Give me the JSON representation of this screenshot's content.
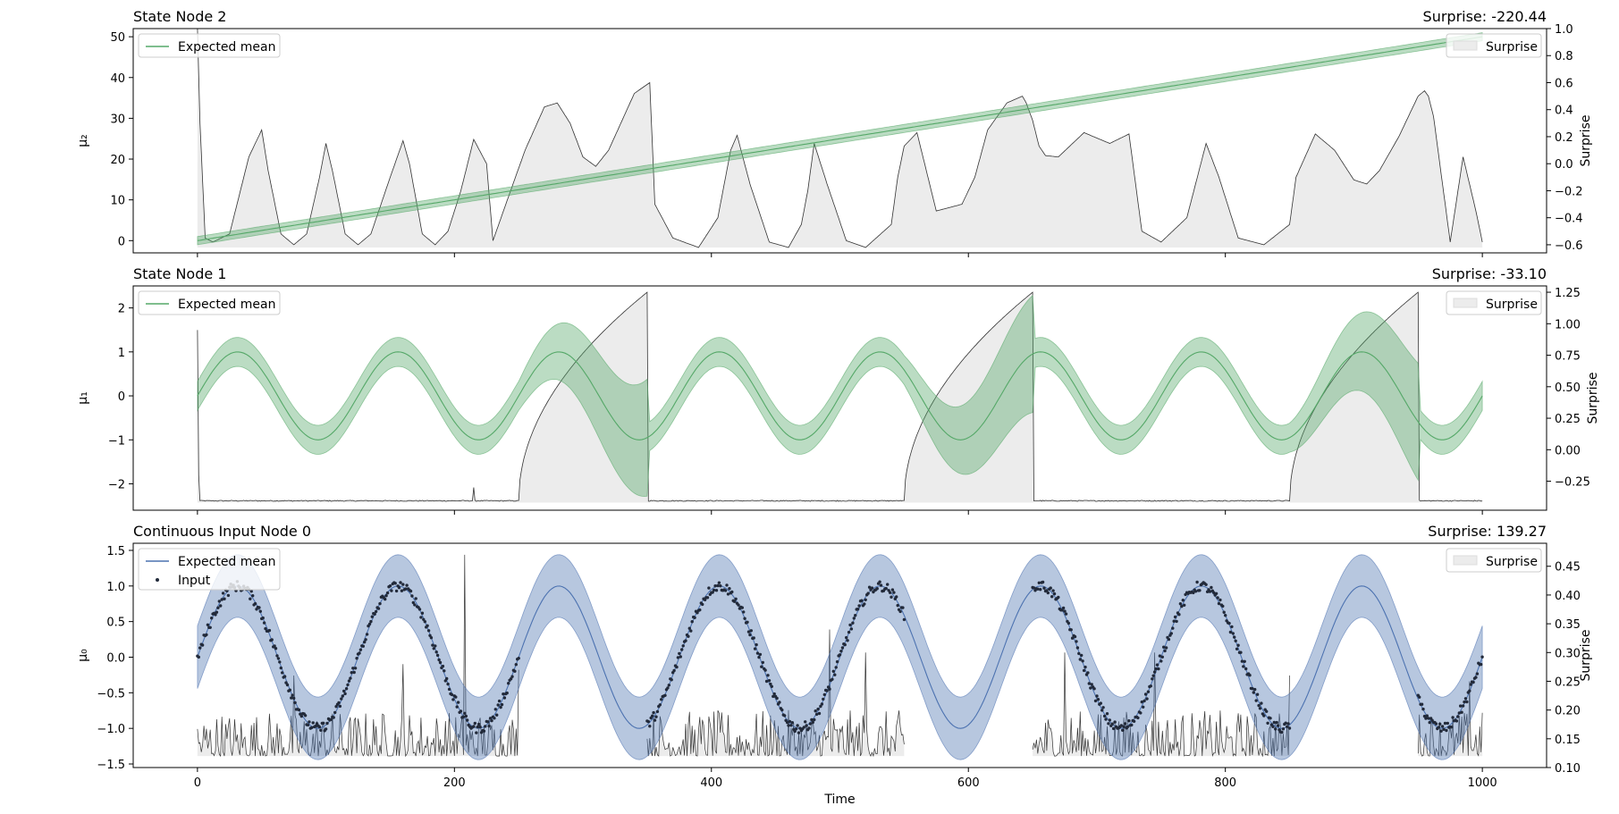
{
  "chart_data": [
    {
      "type": "line",
      "title": "State Node 2",
      "surprise_label": "Surprise: -220.44",
      "ylabel": "μ₂",
      "y2label": "Surprise",
      "xlim": [
        -50,
        1050
      ],
      "ylim": [
        -3,
        52
      ],
      "y2lim": [
        -0.66,
        1.0
      ],
      "yticks": [
        0,
        10,
        20,
        30,
        40,
        50
      ],
      "y2ticks": [
        -0.6,
        -0.4,
        -0.2,
        0.0,
        0.2,
        0.4,
        0.6,
        0.8,
        1.0
      ],
      "y2ticklabels": [
        "−0.6",
        "−0.4",
        "−0.2",
        "0.0",
        "0.2",
        "0.4",
        "0.6",
        "0.8",
        "1.0"
      ],
      "grid": false,
      "legend": {
        "position": "top-left",
        "entries": [
          "Expected mean"
        ]
      },
      "legend2": {
        "position": "top-right",
        "entries": [
          "Surprise"
        ]
      },
      "series": [
        {
          "name": "Expected mean",
          "color": "#55a868",
          "x": [
            0,
            1000
          ],
          "y": [
            0,
            50
          ],
          "band_width": [
            1.0,
            1.0
          ]
        },
        {
          "name": "Surprise",
          "color": "#333333",
          "fill": "#ececec",
          "axis": "right",
          "fill_base": -0.62,
          "x": [
            0,
            2,
            6,
            12,
            25,
            40,
            50,
            55,
            65,
            75,
            85,
            95,
            100,
            105,
            115,
            125,
            135,
            150,
            160,
            165,
            175,
            185,
            195,
            205,
            215,
            225,
            230,
            240,
            255,
            270,
            280,
            290,
            300,
            310,
            320,
            340,
            352,
            356,
            370,
            390,
            405,
            415,
            420,
            430,
            445,
            460,
            470,
            475,
            480,
            490,
            505,
            520,
            540,
            545,
            550,
            560,
            575,
            595,
            605,
            615,
            630,
            642,
            645,
            650,
            655,
            660,
            670,
            690,
            710,
            725,
            735,
            750,
            770,
            785,
            795,
            810,
            830,
            850,
            855,
            870,
            885,
            900,
            910,
            920,
            935,
            950,
            955,
            958,
            962,
            975,
            985,
            995,
            1000
          ],
          "y": [
            1.0,
            0.3,
            -0.55,
            -0.58,
            -0.52,
            0.05,
            0.25,
            -0.05,
            -0.52,
            -0.6,
            -0.52,
            -0.1,
            0.15,
            -0.05,
            -0.52,
            -0.6,
            -0.52,
            -0.1,
            0.17,
            0.0,
            -0.52,
            -0.6,
            -0.5,
            -0.2,
            0.18,
            0.0,
            -0.57,
            -0.3,
            0.1,
            0.42,
            0.45,
            0.3,
            0.05,
            -0.02,
            0.1,
            0.52,
            0.6,
            -0.3,
            -0.55,
            -0.62,
            -0.4,
            0.1,
            0.21,
            -0.15,
            -0.58,
            -0.62,
            -0.45,
            -0.2,
            0.15,
            -0.15,
            -0.57,
            -0.62,
            -0.45,
            -0.1,
            0.13,
            0.23,
            -0.35,
            -0.3,
            -0.1,
            0.25,
            0.45,
            0.5,
            0.45,
            0.32,
            0.13,
            0.06,
            0.05,
            0.23,
            0.15,
            0.22,
            -0.5,
            -0.58,
            -0.4,
            0.15,
            -0.1,
            -0.55,
            -0.6,
            -0.45,
            -0.1,
            0.22,
            0.1,
            -0.12,
            -0.15,
            -0.05,
            0.2,
            0.5,
            0.54,
            0.5,
            0.35,
            -0.58,
            0.05,
            -0.35,
            -0.58
          ]
        }
      ]
    },
    {
      "type": "line",
      "title": "State Node 1",
      "surprise_label": "Surprise: -33.10",
      "ylabel": "μ₁",
      "y2label": "Surprise",
      "xlim": [
        -50,
        1050
      ],
      "ylim": [
        -2.6,
        2.5
      ],
      "y2lim": [
        -0.48,
        1.3
      ],
      "yticks": [
        -2,
        -1,
        0,
        1,
        2
      ],
      "yticklabels": [
        "−2",
        "−1",
        "0",
        "1",
        "2"
      ],
      "y2ticks": [
        -0.25,
        0.0,
        0.25,
        0.5,
        0.75,
        1.0,
        1.25
      ],
      "y2ticklabels": [
        "−0.25",
        "0.00",
        "0.25",
        "0.50",
        "0.75",
        "1.00",
        "1.25"
      ],
      "grid": false,
      "legend": {
        "position": "top-left",
        "entries": [
          "Expected mean"
        ]
      },
      "legend2": {
        "position": "top-right",
        "entries": [
          "Surprise"
        ]
      },
      "series": [
        {
          "name": "Expected mean",
          "color": "#55a868",
          "function": "sin(2*pi*x/125)",
          "x_range": [
            0,
            1000
          ],
          "band_width_normal": 0.33,
          "missing_input_segments": [
            [
              250,
              350
            ],
            [
              550,
              650
            ],
            [
              850,
              950
            ]
          ]
        },
        {
          "name": "Surprise",
          "color": "#333333",
          "fill": "#ececec",
          "axis": "right",
          "fill_base": -0.42,
          "baseline": -0.405,
          "spikes": [
            [
              0,
              0.95
            ],
            [
              215,
              -0.3
            ]
          ],
          "ramps": [
            [
              250,
              350,
              1.25
            ],
            [
              550,
              650,
              1.25
            ],
            [
              850,
              950,
              1.25
            ]
          ]
        }
      ]
    },
    {
      "type": "scatter",
      "title": "Continuous Input Node 0",
      "surprise_label": "Surprise: 139.27",
      "ylabel": "μ₀",
      "y2label": "Surprise",
      "xlabel": "Time",
      "xlim": [
        -50,
        1050
      ],
      "ylim": [
        -1.55,
        1.6
      ],
      "y2lim": [
        0.1,
        0.49
      ],
      "xticks": [
        0,
        200,
        400,
        600,
        800,
        1000
      ],
      "yticks": [
        -1.5,
        -1.0,
        -0.5,
        0.0,
        0.5,
        1.0,
        1.5
      ],
      "yticklabels": [
        "−1.5",
        "−1.0",
        "−0.5",
        "0.0",
        "0.5",
        "1.0",
        "1.5"
      ],
      "y2ticks": [
        0.1,
        0.15,
        0.2,
        0.25,
        0.3,
        0.35,
        0.4,
        0.45
      ],
      "y2ticklabels": [
        "0.10",
        "0.15",
        "0.20",
        "0.25",
        "0.30",
        "0.35",
        "0.40",
        "0.45"
      ],
      "grid": false,
      "legend": {
        "position": "top-left",
        "entries": [
          "Expected mean",
          "Input"
        ]
      },
      "legend2": {
        "position": "top-right",
        "entries": [
          "Surprise"
        ]
      },
      "series": [
        {
          "name": "Expected mean",
          "color": "#4c72b0",
          "function": "sin(2*pi*x/125)",
          "x_range": [
            0,
            1000
          ],
          "band_width": 0.44
        },
        {
          "name": "Input",
          "color": "#222a3a",
          "function": "sin(2*pi*x/125) + noise(0.05)",
          "observed_segments": [
            [
              0,
              250
            ],
            [
              350,
              550
            ],
            [
              650,
              850
            ],
            [
              950,
              1000
            ]
          ]
        },
        {
          "name": "Surprise",
          "color": "#333333",
          "fill": "#ececec",
          "axis": "right",
          "typical_range": [
            0.12,
            0.2
          ],
          "observed_segments": [
            [
              0,
              250
            ],
            [
              350,
              550
            ],
            [
              650,
              850
            ],
            [
              950,
              1000
            ]
          ],
          "spikes": [
            [
              75,
              0.26
            ],
            [
              160,
              0.28
            ],
            [
              208,
              0.47
            ],
            [
              250,
              0.27
            ],
            [
              492,
              0.34
            ],
            [
              520,
              0.3
            ],
            [
              675,
              0.3
            ],
            [
              745,
              0.3
            ],
            [
              850,
              0.26
            ],
            [
              990,
              0.25
            ]
          ]
        }
      ]
    }
  ]
}
